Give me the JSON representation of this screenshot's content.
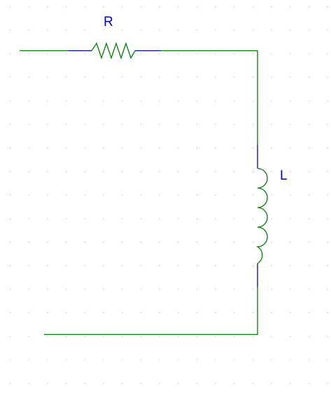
{
  "schematic": {
    "resistor_label": "R",
    "inductor_label": "L"
  },
  "colors": {
    "background": "#ffffff",
    "grid_dot": "#9a9a9a",
    "wire": "#008000",
    "pin": "#0000cd",
    "label": "#0000cd"
  }
}
